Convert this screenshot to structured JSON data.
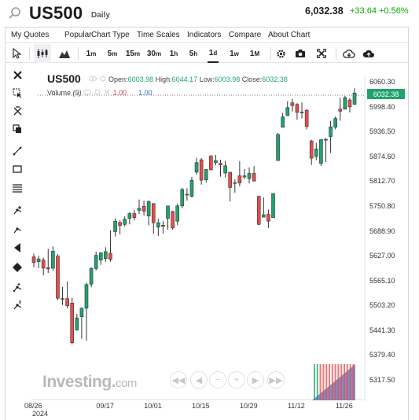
{
  "header": {
    "symbol": "US500",
    "timeframe": "Daily",
    "price": "6,032.38",
    "change": "+33.64",
    "change_percent": "+0.56%"
  },
  "menu": [
    "My Quotes",
    "Popular",
    "Chart Type",
    "Time Scales",
    "Indicators",
    "Compare",
    "About Chart"
  ],
  "toolbar": {
    "intervals": [
      {
        "num": "1",
        "unit": "m"
      },
      {
        "num": "5",
        "unit": "m"
      },
      {
        "num": "15",
        "unit": "m"
      },
      {
        "num": "30",
        "unit": "m"
      },
      {
        "num": "1",
        "unit": "h"
      },
      {
        "num": "5",
        "unit": "h"
      },
      {
        "num": "1",
        "unit": "d"
      },
      {
        "num": "1",
        "unit": "w"
      },
      {
        "num": "1",
        "unit": "M"
      }
    ],
    "active_interval": "1d"
  },
  "legend": {
    "symbol": "US500",
    "open_label": "Open:",
    "open": "6003.98",
    "high_label": "High:",
    "high": "6044.17",
    "low_label": "Low:",
    "low": "6003.98",
    "close_label": "Close:",
    "close": "6032.38",
    "volume_label": "Volume",
    "volume_param": "(9)",
    "volume_value_1": "1.00",
    "volume_value_2": "1.00"
  },
  "last_price_tag": "6032.38",
  "watermark": {
    "brand": "Investing",
    "suffix": "com"
  },
  "colors": {
    "up": "#21a36c",
    "down": "#e74c4c",
    "accent": "#21a36c",
    "change": "#0ea600"
  },
  "chart_data": {
    "type": "candlestick",
    "title": "US500",
    "interval": "Daily",
    "ylim": [
      5290,
      6080
    ],
    "y_ticks": [
      "6060.30",
      "5998.40",
      "5936.50",
      "5874.60",
      "5812.70",
      "5750.80",
      "5688.90",
      "5627.00",
      "5565.10",
      "5503.20",
      "5441.30",
      "5379.40",
      "5317.50"
    ],
    "x_ticks": [
      "08/26",
      "09/17",
      "10/01",
      "10/15",
      "10/29",
      "11/12",
      "11/26"
    ],
    "x_year": "2024",
    "candles": [
      {
        "date": "08/26",
        "o": 5624,
        "h": 5632,
        "l": 5598,
        "c": 5610
      },
      {
        "date": "08/27",
        "o": 5612,
        "h": 5627,
        "l": 5596,
        "c": 5619
      },
      {
        "date": "08/28",
        "o": 5616,
        "h": 5622,
        "l": 5578,
        "c": 5596
      },
      {
        "date": "08/29",
        "o": 5597,
        "h": 5644,
        "l": 5584,
        "c": 5594
      },
      {
        "date": "08/30",
        "o": 5596,
        "h": 5650,
        "l": 5590,
        "c": 5638
      },
      {
        "date": "09/03",
        "o": 5626,
        "h": 5631,
        "l": 5516,
        "c": 5521
      },
      {
        "date": "09/04",
        "o": 5520,
        "h": 5549,
        "l": 5504,
        "c": 5520
      },
      {
        "date": "09/05",
        "o": 5520,
        "h": 5563,
        "l": 5496,
        "c": 5502
      },
      {
        "date": "09/06",
        "o": 5509,
        "h": 5522,
        "l": 5406,
        "c": 5410
      },
      {
        "date": "09/09",
        "o": 5442,
        "h": 5482,
        "l": 5440,
        "c": 5472
      },
      {
        "date": "09/10",
        "o": 5475,
        "h": 5498,
        "l": 5420,
        "c": 5496
      },
      {
        "date": "09/11",
        "o": 5496,
        "h": 5560,
        "l": 5415,
        "c": 5555
      },
      {
        "date": "09/12",
        "o": 5556,
        "h": 5598,
        "l": 5548,
        "c": 5595
      },
      {
        "date": "09/13",
        "o": 5595,
        "h": 5637,
        "l": 5590,
        "c": 5628
      },
      {
        "date": "09/16",
        "o": 5616,
        "h": 5636,
        "l": 5604,
        "c": 5634
      },
      {
        "date": "09/17",
        "o": 5620,
        "h": 5648,
        "l": 5612,
        "c": 5637
      },
      {
        "date": "09/18",
        "o": 5633,
        "h": 5690,
        "l": 5612,
        "c": 5618
      },
      {
        "date": "09/19",
        "o": 5687,
        "h": 5720,
        "l": 5675,
        "c": 5713
      },
      {
        "date": "09/20",
        "o": 5710,
        "h": 5715,
        "l": 5680,
        "c": 5702
      },
      {
        "date": "09/23",
        "o": 5705,
        "h": 5725,
        "l": 5700,
        "c": 5718
      },
      {
        "date": "09/24",
        "o": 5720,
        "h": 5735,
        "l": 5705,
        "c": 5732
      },
      {
        "date": "09/25",
        "o": 5732,
        "h": 5741,
        "l": 5715,
        "c": 5722
      },
      {
        "date": "09/26",
        "o": 5740,
        "h": 5767,
        "l": 5731,
        "c": 5745
      },
      {
        "date": "09/27",
        "o": 5750,
        "h": 5764,
        "l": 5727,
        "c": 5738
      },
      {
        "date": "09/30",
        "o": 5726,
        "h": 5765,
        "l": 5703,
        "c": 5762
      },
      {
        "date": "10/01",
        "o": 5757,
        "h": 5757,
        "l": 5681,
        "c": 5709
      },
      {
        "date": "10/02",
        "o": 5698,
        "h": 5719,
        "l": 5676,
        "c": 5709
      },
      {
        "date": "10/03",
        "o": 5703,
        "h": 5713,
        "l": 5682,
        "c": 5700
      },
      {
        "date": "10/04",
        "o": 5720,
        "h": 5751,
        "l": 5692,
        "c": 5751
      },
      {
        "date": "10/07",
        "o": 5737,
        "h": 5739,
        "l": 5692,
        "c": 5696
      },
      {
        "date": "10/08",
        "o": 5713,
        "h": 5757,
        "l": 5703,
        "c": 5751
      },
      {
        "date": "10/09",
        "o": 5751,
        "h": 5796,
        "l": 5745,
        "c": 5792
      },
      {
        "date": "10/10",
        "o": 5778,
        "h": 5795,
        "l": 5764,
        "c": 5780
      },
      {
        "date": "10/11",
        "o": 5775,
        "h": 5823,
        "l": 5772,
        "c": 5815
      },
      {
        "date": "10/14",
        "o": 5835,
        "h": 5871,
        "l": 5829,
        "c": 5859
      },
      {
        "date": "10/15",
        "o": 5866,
        "h": 5870,
        "l": 5804,
        "c": 5815
      },
      {
        "date": "10/16",
        "o": 5816,
        "h": 5843,
        "l": 5809,
        "c": 5842
      },
      {
        "date": "10/17",
        "o": 5875,
        "h": 5878,
        "l": 5840,
        "c": 5841
      },
      {
        "date": "10/18",
        "o": 5859,
        "h": 5878,
        "l": 5852,
        "c": 5864
      },
      {
        "date": "10/21",
        "o": 5857,
        "h": 5866,
        "l": 5824,
        "c": 5853
      },
      {
        "date": "10/22",
        "o": 5833,
        "h": 5863,
        "l": 5822,
        "c": 5851
      },
      {
        "date": "10/23",
        "o": 5835,
        "h": 5835,
        "l": 5762,
        "c": 5797
      },
      {
        "date": "10/24",
        "o": 5809,
        "h": 5817,
        "l": 5784,
        "c": 5809
      },
      {
        "date": "10/25",
        "o": 5826,
        "h": 5862,
        "l": 5800,
        "c": 5808
      },
      {
        "date": "10/28",
        "o": 5826,
        "h": 5843,
        "l": 5818,
        "c": 5823
      },
      {
        "date": "10/29",
        "o": 5819,
        "h": 5847,
        "l": 5807,
        "c": 5832
      },
      {
        "date": "10/30",
        "o": 5832,
        "h": 5850,
        "l": 5812,
        "c": 5813
      },
      {
        "date": "10/31",
        "o": 5775,
        "h": 5775,
        "l": 5703,
        "c": 5705
      },
      {
        "date": "11/01",
        "o": 5723,
        "h": 5772,
        "l": 5723,
        "c": 5729
      },
      {
        "date": "11/04",
        "o": 5730,
        "h": 5742,
        "l": 5696,
        "c": 5713
      },
      {
        "date": "11/05",
        "o": 5722,
        "h": 5783,
        "l": 5722,
        "c": 5782
      },
      {
        "date": "11/06",
        "o": 5864,
        "h": 5933,
        "l": 5864,
        "c": 5929
      },
      {
        "date": "11/07",
        "o": 5947,
        "h": 5983,
        "l": 5946,
        "c": 5973
      },
      {
        "date": "11/08",
        "o": 5976,
        "h": 6012,
        "l": 5976,
        "c": 5996
      },
      {
        "date": "11/11",
        "o": 6008,
        "h": 6018,
        "l": 5986,
        "c": 6001
      },
      {
        "date": "11/12",
        "o": 6004,
        "h": 6007,
        "l": 5966,
        "c": 5984
      },
      {
        "date": "11/13",
        "o": 5985,
        "h": 6009,
        "l": 5969,
        "c": 5985
      },
      {
        "date": "11/14",
        "o": 5989,
        "h": 5993,
        "l": 5942,
        "c": 5949
      },
      {
        "date": "11/15",
        "o": 5913,
        "h": 5916,
        "l": 5853,
        "c": 5870
      },
      {
        "date": "11/18",
        "o": 5874,
        "h": 5908,
        "l": 5865,
        "c": 5893
      },
      {
        "date": "11/19",
        "o": 5857,
        "h": 5918,
        "l": 5850,
        "c": 5916
      },
      {
        "date": "11/20",
        "o": 5917,
        "h": 5920,
        "l": 5860,
        "c": 5917
      },
      {
        "date": "11/21",
        "o": 5924,
        "h": 5963,
        "l": 5883,
        "c": 5948
      },
      {
        "date": "11/22",
        "o": 5947,
        "h": 5974,
        "l": 5942,
        "c": 5969
      },
      {
        "date": "11/25",
        "o": 5992,
        "h": 6020,
        "l": 5963,
        "c": 5987
      },
      {
        "date": "11/26",
        "o": 5992,
        "h": 6025,
        "l": 5992,
        "c": 6021
      },
      {
        "date": "11/27",
        "o": 6015,
        "h": 6020,
        "l": 5984,
        "c": 5998
      },
      {
        "date": "11/29",
        "o": 6003.98,
        "h": 6044.17,
        "l": 6003.98,
        "c": 6032.38
      }
    ]
  }
}
